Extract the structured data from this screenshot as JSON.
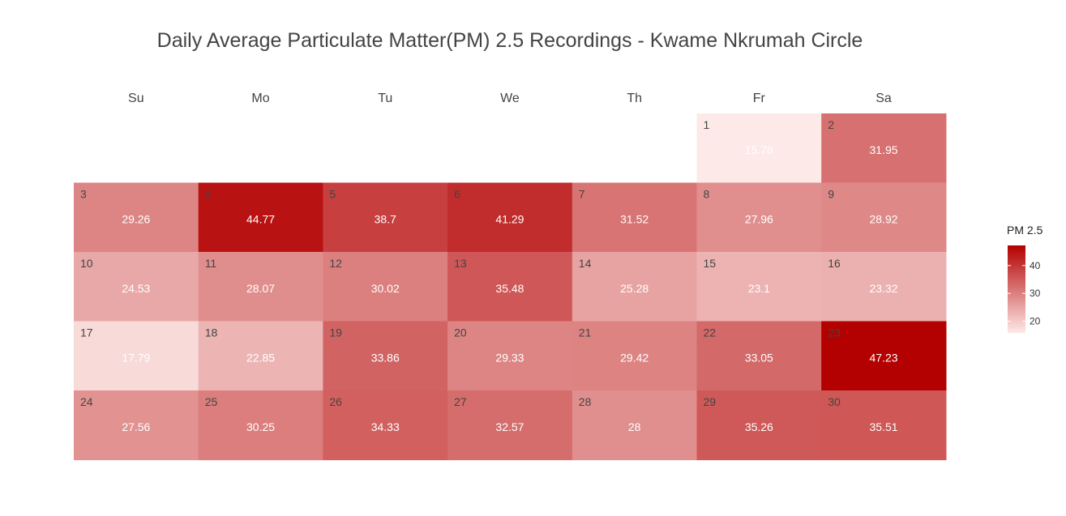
{
  "chart_data": {
    "type": "heatmap",
    "title": "Daily Average Particulate Matter(PM) 2.5 Recordings - Kwame Nkrumah Circle",
    "weekdays": [
      "Su",
      "Mo",
      "Tu",
      "We",
      "Th",
      "Fr",
      "Sa"
    ],
    "first_weekday_index": 5,
    "days": [
      1,
      2,
      3,
      4,
      5,
      6,
      7,
      8,
      9,
      10,
      11,
      12,
      13,
      14,
      15,
      16,
      17,
      18,
      19,
      20,
      21,
      22,
      23,
      24,
      25,
      26,
      27,
      28,
      29,
      30
    ],
    "values": [
      15.78,
      31.95,
      29.26,
      44.77,
      38.7,
      41.29,
      31.52,
      27.96,
      28.92,
      24.53,
      28.07,
      30.02,
      35.48,
      25.28,
      23.1,
      23.32,
      17.79,
      22.85,
      33.86,
      29.33,
      29.42,
      33.05,
      47.23,
      27.56,
      30.25,
      34.33,
      32.57,
      28,
      35.26,
      35.51
    ],
    "value_labels": [
      "15.78",
      "31.95",
      "29.26",
      "44.77",
      "38.7",
      "41.29",
      "31.52",
      "27.96",
      "28.92",
      "24.53",
      "28.07",
      "30.02",
      "35.48",
      "25.28",
      "23.1",
      "23.32",
      "17.79",
      "22.85",
      "33.86",
      "29.33",
      "29.42",
      "33.05",
      "47.23",
      "27.56",
      "30.25",
      "34.33",
      "32.57",
      "28",
      "35.26",
      "35.51"
    ],
    "color_scale": {
      "low": "#fde9e8",
      "high": "#b30000",
      "domain": [
        15.78,
        47.23
      ]
    },
    "legend": {
      "title": "PM 2.5",
      "ticks": [
        20,
        30,
        40
      ],
      "placement": "right"
    }
  }
}
